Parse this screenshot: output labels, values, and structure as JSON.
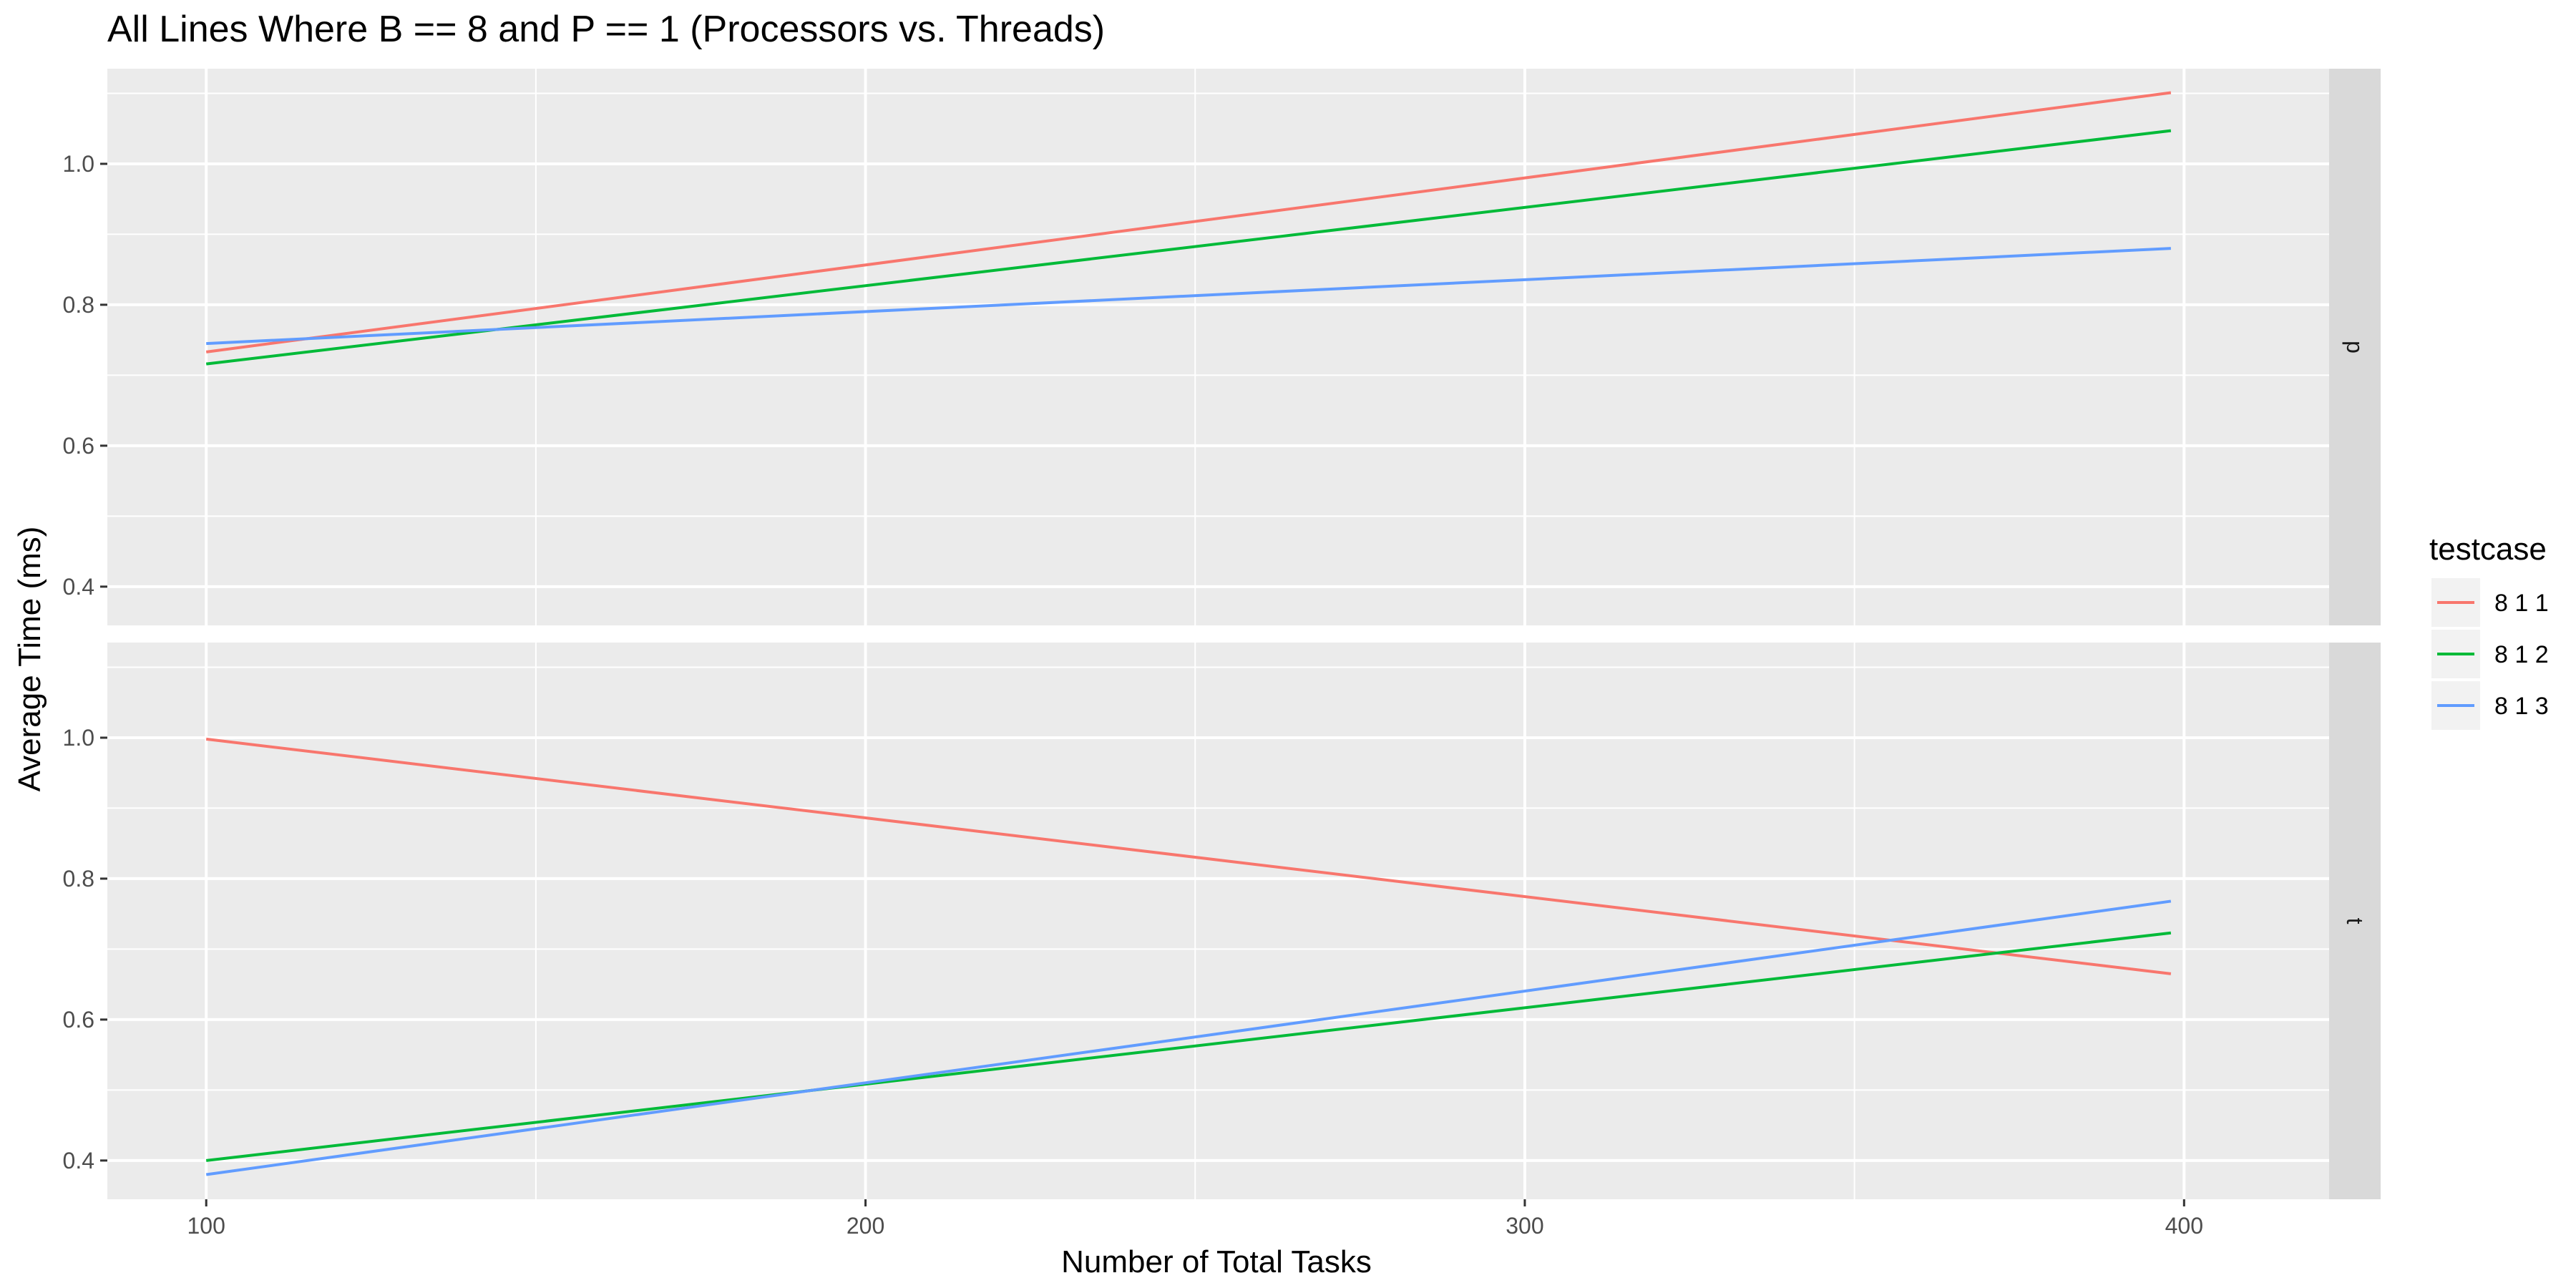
{
  "chart_data": {
    "type": "line",
    "title": "All Lines Where B == 8 and P == 1 (Processors vs. Threads)",
    "xlabel": "Number of Total Tasks",
    "ylabel": "Average Time (ms)",
    "xlim": [
      85,
      422
    ],
    "ylim": [
      0.345,
      1.135
    ],
    "x_ticks": [
      100,
      200,
      300,
      400
    ],
    "x_minor_ticks": [
      150,
      250,
      350
    ],
    "y_ticks": [
      0.4,
      0.6,
      0.8,
      1.0
    ],
    "y_minor_ticks": [
      0.5,
      0.7,
      0.9,
      1.1
    ],
    "grid": true,
    "legend": {
      "title": "testcase",
      "position": "right"
    },
    "panels": [
      {
        "strip": "p",
        "series": [
          {
            "name": "8 1 1",
            "color": "#F8766D",
            "x": [
              100,
              398
            ],
            "y": [
              0.733,
              1.101
            ]
          },
          {
            "name": "8 1 2",
            "color": "#00BA38",
            "x": [
              100,
              398
            ],
            "y": [
              0.716,
              1.047
            ]
          },
          {
            "name": "8 1 3",
            "color": "#619CFF",
            "x": [
              100,
              398
            ],
            "y": [
              0.745,
              0.88
            ]
          }
        ]
      },
      {
        "strip": "t",
        "series": [
          {
            "name": "8 1 1",
            "color": "#F8766D",
            "x": [
              100,
              398
            ],
            "y": [
              0.998,
              0.665
            ]
          },
          {
            "name": "8 1 2",
            "color": "#00BA38",
            "x": [
              100,
              398
            ],
            "y": [
              0.4,
              0.723
            ]
          },
          {
            "name": "8 1 3",
            "color": "#619CFF",
            "x": [
              100,
              398
            ],
            "y": [
              0.38,
              0.768
            ]
          }
        ]
      }
    ]
  }
}
